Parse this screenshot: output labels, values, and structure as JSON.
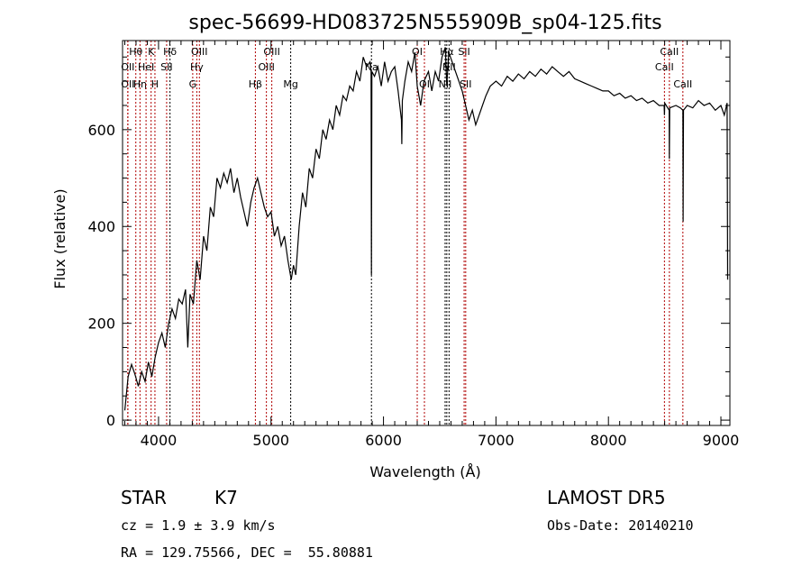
{
  "chart_data": {
    "type": "line",
    "title": "spec-56699-HD083725N555909B_sp04-125.fits",
    "xlabel": "Wavelength (Å)",
    "ylabel": "Flux (relative)",
    "xlim": [
      3680,
      9080
    ],
    "ylim": [
      -11,
      784
    ],
    "xticks": [
      4000,
      5000,
      6000,
      7000,
      8000,
      9000
    ],
    "yticks": [
      0,
      200,
      400,
      600
    ],
    "grid": false,
    "series": [
      {
        "name": "spectrum",
        "color": "#000000",
        "x": [
          3700,
          3730,
          3760,
          3790,
          3820,
          3850,
          3880,
          3910,
          3940,
          3970,
          4000,
          4030,
          4060,
          4090,
          4120,
          4150,
          4180,
          4210,
          4240,
          4260,
          4280,
          4310,
          4340,
          4370,
          4400,
          4430,
          4460,
          4490,
          4520,
          4550,
          4580,
          4610,
          4640,
          4670,
          4700,
          4730,
          4760,
          4790,
          4820,
          4850,
          4880,
          4910,
          4940,
          4970,
          5000,
          5030,
          5060,
          5090,
          5120,
          5150,
          5180,
          5200,
          5220,
          5250,
          5280,
          5310,
          5340,
          5370,
          5400,
          5430,
          5460,
          5490,
          5520,
          5550,
          5580,
          5610,
          5640,
          5670,
          5700,
          5730,
          5760,
          5790,
          5820,
          5850,
          5880,
          5890,
          5893,
          5897,
          5920,
          5950,
          5980,
          6010,
          6040,
          6070,
          6100,
          6130,
          6160,
          6163,
          6168,
          6190,
          6220,
          6250,
          6280,
          6300,
          6330,
          6360,
          6400,
          6430,
          6460,
          6490,
          6520,
          6550,
          6563,
          6580,
          6610,
          6640,
          6670,
          6700,
          6730,
          6760,
          6790,
          6820,
          6850,
          6880,
          6910,
          6950,
          7000,
          7050,
          7100,
          7150,
          7200,
          7250,
          7300,
          7350,
          7400,
          7450,
          7500,
          7550,
          7600,
          7650,
          7700,
          7750,
          7800,
          7850,
          7900,
          7950,
          8000,
          8050,
          8100,
          8150,
          8200,
          8250,
          8300,
          8350,
          8400,
          8450,
          8495,
          8498,
          8501,
          8540,
          8542,
          8545,
          8600,
          8640,
          8662,
          8664,
          8667,
          8700,
          8750,
          8800,
          8850,
          8900,
          8950,
          9000,
          9030,
          9050,
          9055,
          9060
        ],
        "y": [
          20,
          90,
          115,
          95,
          70,
          100,
          80,
          120,
          90,
          130,
          160,
          180,
          150,
          200,
          230,
          210,
          250,
          240,
          270,
          150,
          260,
          240,
          330,
          290,
          380,
          350,
          440,
          420,
          500,
          480,
          510,
          490,
          520,
          470,
          500,
          460,
          430,
          400,
          450,
          480,
          500,
          470,
          440,
          420,
          430,
          380,
          400,
          360,
          380,
          330,
          290,
          320,
          300,
          400,
          470,
          440,
          520,
          500,
          560,
          540,
          600,
          580,
          620,
          600,
          650,
          630,
          670,
          660,
          690,
          680,
          720,
          700,
          750,
          730,
          740,
          720,
          300,
          720,
          710,
          730,
          690,
          740,
          700,
          720,
          730,
          680,
          620,
          570,
          660,
          700,
          740,
          720,
          760,
          690,
          650,
          700,
          720,
          680,
          720,
          700,
          750,
          770,
          690,
          760,
          740,
          720,
          700,
          680,
          650,
          620,
          640,
          610,
          630,
          650,
          670,
          690,
          700,
          690,
          710,
          700,
          715,
          705,
          720,
          710,
          725,
          715,
          730,
          720,
          710,
          720,
          705,
          700,
          695,
          690,
          685,
          680,
          680,
          670,
          675,
          665,
          670,
          660,
          665,
          655,
          660,
          650,
          650,
          630,
          655,
          640,
          540,
          645,
          650,
          645,
          640,
          410,
          640,
          650,
          645,
          660,
          650,
          655,
          640,
          650,
          630,
          650,
          655,
          290
        ]
      }
    ],
    "lines": [
      {
        "label": "OII",
        "w": 3727,
        "color": "#b00000",
        "row": 2
      },
      {
        "label": "Hθ",
        "w": 3798,
        "color": "#b00000",
        "row": 0
      },
      {
        "label": "OII",
        "w": 3727,
        "color": "#b00000",
        "row": 1
      },
      {
        "label": "Hη",
        "w": 3835,
        "color": "#b00000",
        "row": 2
      },
      {
        "label": "HeI",
        "w": 3889,
        "color": "#b00000",
        "row": 1
      },
      {
        "label": "K",
        "w": 3934,
        "color": "#b00000",
        "row": 0
      },
      {
        "label": "H",
        "w": 3968,
        "color": "#b00000",
        "row": 2
      },
      {
        "label": "SII",
        "w": 4072,
        "color": "#b00000",
        "row": 1
      },
      {
        "label": "Hδ",
        "w": 4102,
        "color": "#000000",
        "row": 0
      },
      {
        "label": "G",
        "w": 4304,
        "color": "#b00000",
        "row": 2
      },
      {
        "label": "Hγ",
        "w": 4340,
        "color": "#b00000",
        "row": 1
      },
      {
        "label": "OIII",
        "w": 4363,
        "color": "#b00000",
        "row": 0
      },
      {
        "label": "Hβ",
        "w": 4861,
        "color": "#b00000",
        "row": 2
      },
      {
        "label": "OIII",
        "w": 4959,
        "color": "#b00000",
        "row": 1
      },
      {
        "label": "OIII",
        "w": 5007,
        "color": "#b00000",
        "row": 0
      },
      {
        "label": "Mg",
        "w": 5175,
        "color": "#000000",
        "row": 2
      },
      {
        "label": "Na",
        "w": 5893,
        "color": "#000000",
        "row": 1
      },
      {
        "label": "OI",
        "w": 6300,
        "color": "#b00000",
        "row": 0
      },
      {
        "label": "OI",
        "w": 6364,
        "color": "#b00000",
        "row": 2
      },
      {
        "label": "NII",
        "w": 6548,
        "color": "#000000",
        "row": 2
      },
      {
        "label": "Hα",
        "w": 6563,
        "color": "#000000",
        "row": 0
      },
      {
        "label": "NII",
        "w": 6583,
        "color": "#000000",
        "row": 1
      },
      {
        "label": "SII",
        "w": 6717,
        "color": "#b00000",
        "row": 0
      },
      {
        "label": "SII",
        "w": 6731,
        "color": "#b00000",
        "row": 2
      },
      {
        "label": "CaII",
        "w": 8498,
        "color": "#b00000",
        "row": 1
      },
      {
        "label": "CaII",
        "w": 8542,
        "color": "#b00000",
        "row": 0
      },
      {
        "label": "CaII",
        "w": 8662,
        "color": "#b00000",
        "row": 2
      }
    ]
  },
  "info": {
    "object_class": "STAR",
    "subclass": "K7",
    "survey": "LAMOST DR5",
    "cz": "cz = 1.9 ± 3.9 km/s",
    "obs_date": "Obs-Date: 20140210",
    "coords": "RA = 129.75566, DEC =  55.80881"
  }
}
